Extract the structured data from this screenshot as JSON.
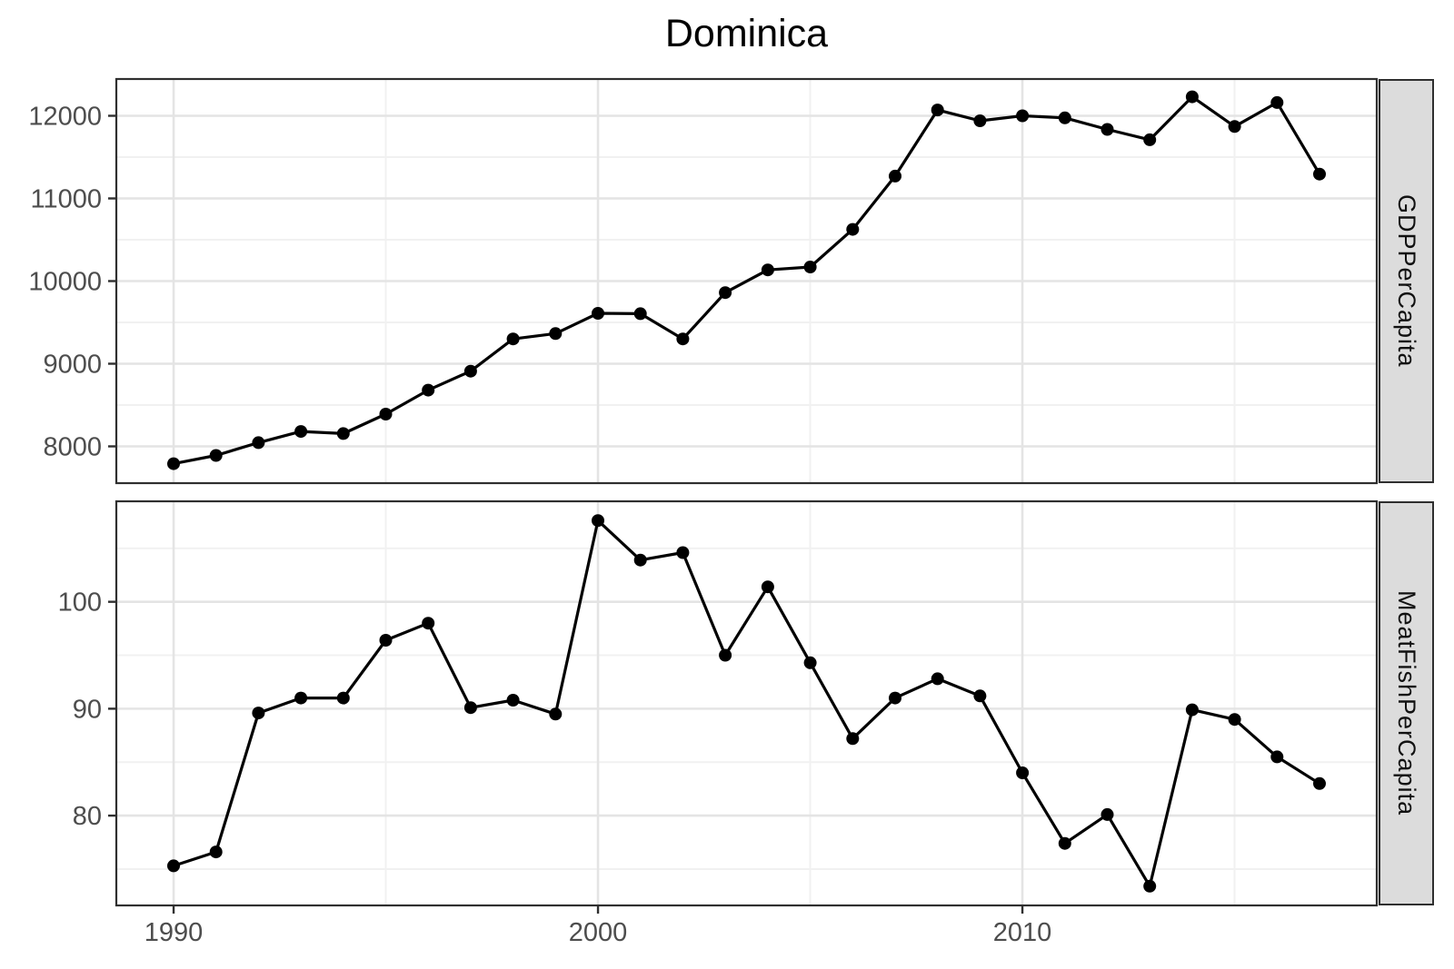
{
  "chart_data": {
    "type": "line",
    "title": "Dominica",
    "xlabel": "",
    "ylabel": "",
    "legend": "none",
    "grid": true,
    "x": [
      1990,
      1991,
      1992,
      1993,
      1994,
      1995,
      1996,
      1997,
      1998,
      1999,
      2000,
      2001,
      2002,
      2003,
      2004,
      2005,
      2006,
      2007,
      2008,
      2009,
      2010,
      2011,
      2012,
      2013,
      2014,
      2015,
      2016,
      2017
    ],
    "x_ticks_major": [
      1990,
      2000,
      2010
    ],
    "x_ticks_minor": [
      1995,
      2005,
      2015
    ],
    "xlim": [
      1988.65,
      2018.35
    ],
    "facets": [
      {
        "label": "GDPPerCapita",
        "values": [
          7790,
          7890,
          8045,
          8180,
          8155,
          8390,
          8680,
          8910,
          9300,
          9365,
          9610,
          9605,
          9300,
          9860,
          10135,
          10170,
          10625,
          11270,
          12070,
          11940,
          12000,
          11975,
          11835,
          11710,
          12230,
          11870,
          12160,
          11295
        ],
        "y_ticks_major": [
          8000,
          9000,
          10000,
          11000,
          12000
        ],
        "y_ticks_minor": [
          8500,
          9500,
          10500,
          11500
        ],
        "ylim": [
          7555,
          12445
        ]
      },
      {
        "label": "MeatFishPerCapita",
        "values": [
          75.3,
          76.6,
          89.6,
          91.0,
          91.0,
          96.4,
          98.0,
          90.1,
          90.8,
          89.5,
          107.6,
          103.9,
          104.6,
          95.0,
          101.4,
          94.3,
          87.2,
          91.0,
          92.8,
          91.2,
          84.0,
          77.4,
          80.1,
          73.4,
          89.9,
          89.0,
          85.5,
          83.0
        ],
        "y_ticks_major": [
          80,
          90,
          100
        ],
        "y_ticks_minor": [
          75,
          85,
          95,
          105
        ],
        "ylim": [
          71.6,
          109.4
        ]
      }
    ],
    "colors": {
      "series": "#000000",
      "grid_major": "#e4e4e4",
      "grid_minor": "#f1f1f1",
      "panel_border": "#2f2f2f",
      "panel_fill": "#ffffff",
      "strip_fill": "#dcdcdc",
      "tick_text": "#4d4d4d",
      "title_text": "#000000"
    }
  }
}
